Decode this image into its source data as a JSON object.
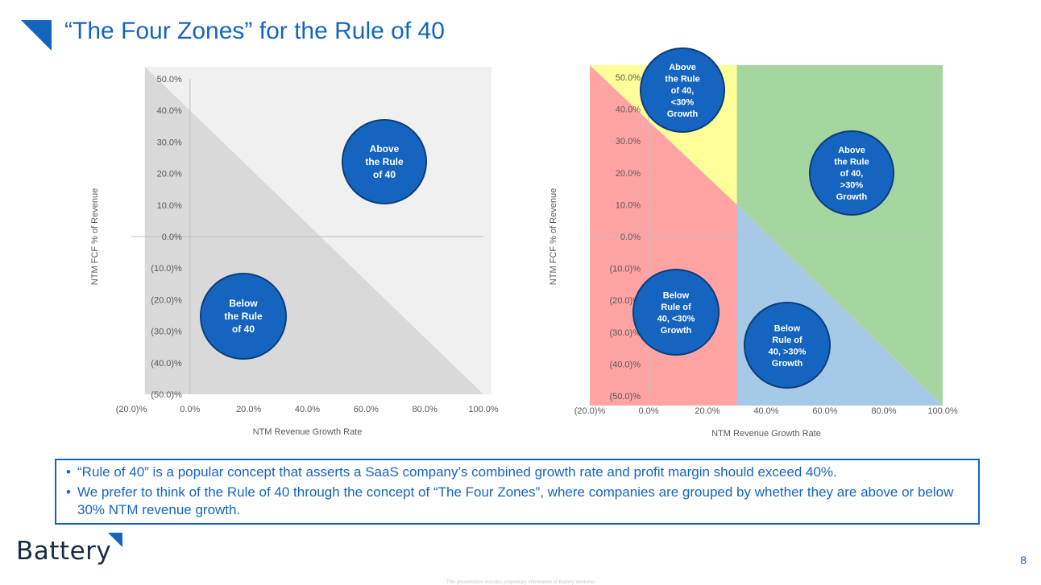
{
  "slide": {
    "title": "“The Four Zones” for the Rule of 40",
    "page_number": "8",
    "logo_text": "Battery",
    "disclaimer": "This presentation includes proprietary information of Battery Ventures",
    "accent_color": "#1565c0"
  },
  "notes": [
    "“Rule of 40” is a popular concept that asserts a SaaS company’s combined growth rate and profit margin should exceed 40%.",
    "We prefer to think of the Rule of 40 through the concept of “The Four Zones”, where companies are grouped by whether they are above or below 30% NTM revenue growth."
  ],
  "chart_data": [
    {
      "type": "area",
      "xlabel": "NTM Revenue Growth Rate",
      "ylabel": "NTM FCF % of Revenue",
      "xlim": [
        -20,
        100
      ],
      "ylim": [
        -50,
        50
      ],
      "x_ticks": [
        "(20.0)%",
        "0.0%",
        "20.0%",
        "40.0%",
        "60.0%",
        "80.0%",
        "100.0%"
      ],
      "y_ticks": [
        "50.0%",
        "40.0%",
        "30.0%",
        "20.0%",
        "10.0%",
        "0.0%",
        "(10.0)%",
        "(20.0)%",
        "(30.0)%",
        "(40.0)%",
        "(50.0)%"
      ],
      "boundary_line": {
        "x": [
          -20,
          100
        ],
        "y": [
          60,
          -60
        ],
        "rule": "growth + margin = 40"
      },
      "zones": [
        {
          "label": "Above the Rule of 40",
          "color": "#f0f0f0"
        },
        {
          "label": "Below the Rule of 40",
          "color": "#d9d9d9"
        }
      ],
      "grid": false
    },
    {
      "type": "area",
      "xlabel": "NTM Revenue Growth Rate",
      "ylabel": "NTM FCF % of Revenue",
      "xlim": [
        -20,
        100
      ],
      "ylim": [
        -50,
        50
      ],
      "x_ticks": [
        "(20.0)%",
        "0.0%",
        "20.0%",
        "40.0%",
        "60.0%",
        "80.0%",
        "100.0%"
      ],
      "y_ticks": [
        "50.0%",
        "40.0%",
        "30.0%",
        "20.0%",
        "10.0%",
        "0.0%",
        "(10.0)%",
        "(20.0)%",
        "(30.0)%",
        "(40.0)%",
        "(50.0)%"
      ],
      "boundary_line": {
        "x": [
          -20,
          100
        ],
        "y": [
          60,
          -60
        ],
        "rule": "growth + margin = 40"
      },
      "growth_threshold": 30,
      "zones": [
        {
          "label": "Above the Rule of 40, <30% Growth",
          "color": "#ffff99"
        },
        {
          "label": "Above the Rule of 40, >30% Growth",
          "color": "#a6d6a0"
        },
        {
          "label": "Below Rule of 40, <30% Growth",
          "color": "#ffa3a3"
        },
        {
          "label": "Below Rule of 40, >30% Growth",
          "color": "#a6c9e8"
        }
      ],
      "grid": false
    }
  ],
  "bubbles": {
    "left": [
      {
        "lines": [
          "Above",
          "the Rule",
          "of 40"
        ]
      },
      {
        "lines": [
          "Below",
          "the Rule",
          "of 40"
        ]
      }
    ],
    "right": [
      {
        "lines": [
          "Above",
          "the Rule",
          "of 40,",
          "<30%",
          "Growth"
        ]
      },
      {
        "lines": [
          "Above",
          "the Rule",
          "of 40,",
          ">30%",
          "Growth"
        ]
      },
      {
        "lines": [
          "Below",
          "Rule of",
          "40, <30%",
          "Growth"
        ]
      },
      {
        "lines": [
          "Below",
          "Rule of",
          "40, >30%",
          "Growth"
        ]
      }
    ],
    "fill": "#1565c0",
    "stroke": "#0d3d7a"
  }
}
